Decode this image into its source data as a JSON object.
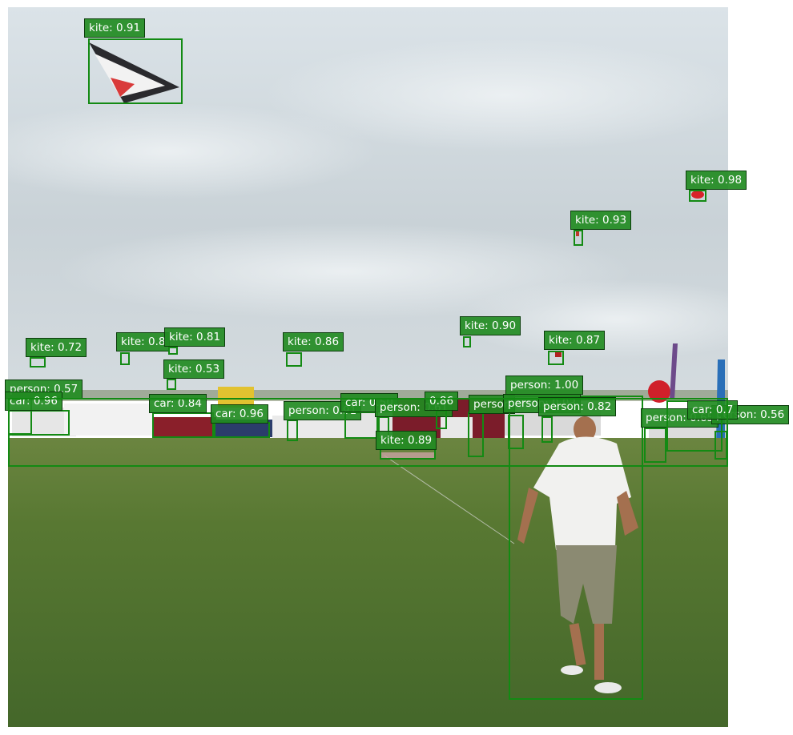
{
  "image": {
    "description_scene": "kite-festival-field-photo",
    "colors": {
      "sky_top": "#dfe6ea",
      "sky_bottom": "#c7d0d5",
      "grass_far": "#5f7a36",
      "grass_near": "#476b2a",
      "box": "#138a13",
      "label_bg": "#228b22",
      "label_text": "#ffffff"
    }
  },
  "detections": [
    {
      "label": "kite: 0.91"
    },
    {
      "label": "kite: 0.98"
    },
    {
      "label": "kite: 0.93"
    },
    {
      "label": "kite: 0.72"
    },
    {
      "label": "kite: 0.8"
    },
    {
      "label": "kite: 0.81"
    },
    {
      "label": "kite: 0.86"
    },
    {
      "label": "kite: 0.90"
    },
    {
      "label": "kite: 0.87"
    },
    {
      "label": "kite: 0.53"
    },
    {
      "label": "person: 0.57"
    },
    {
      "label": "car: 0.96"
    },
    {
      "label": "car: 0.84"
    },
    {
      "label": "car: 0.96"
    },
    {
      "label": "person: 0.91"
    },
    {
      "label": "car: 0.50"
    },
    {
      "label": "person: 0.61"
    },
    {
      "label": "0.86"
    },
    {
      "label": "person"
    },
    {
      "label": "person: 1.00"
    },
    {
      "label": "person: 0.93"
    },
    {
      "label": "person: 0.82"
    },
    {
      "label": "person: 0.65"
    },
    {
      "label": "person: 0.56"
    },
    {
      "label": "car: 0.7"
    },
    {
      "label": "kite: 0.89"
    }
  ]
}
